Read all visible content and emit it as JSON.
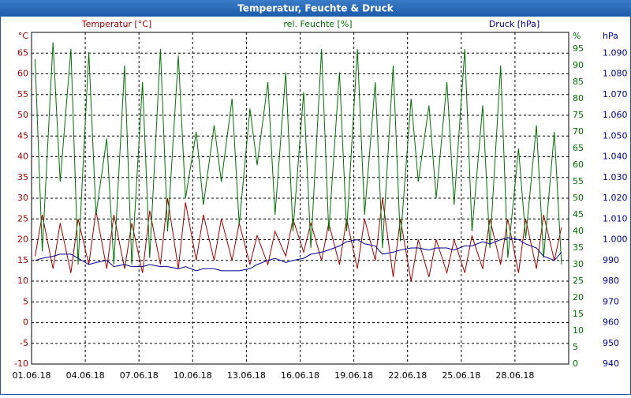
{
  "chart_data": {
    "type": "line",
    "title": "Temperatur, Feuchte & Druck",
    "ylabel": "Temperatur [°C]",
    "y2label": "rel. Feuchte [%]",
    "y3label": "Druck [hPa]",
    "yunit": "°C",
    "y2unit": "%",
    "y3unit": "hPa",
    "grid": true,
    "xlim": [
      0,
      30
    ],
    "xticks": [
      {
        "value": 0,
        "label": "01.06.18"
      },
      {
        "value": 3,
        "label": "04.06.18"
      },
      {
        "value": 6,
        "label": "07.06.18"
      },
      {
        "value": 9,
        "label": "10.06.18"
      },
      {
        "value": 12,
        "label": "13.06.18"
      },
      {
        "value": 15,
        "label": "16.06.18"
      },
      {
        "value": 18,
        "label": "19.06.18"
      },
      {
        "value": 21,
        "label": "22.06.18"
      },
      {
        "value": 24,
        "label": "25.06.18"
      },
      {
        "value": 27,
        "label": "28.06.18"
      }
    ],
    "ylim": [
      -10,
      70
    ],
    "yticks": [
      -10,
      -5,
      0,
      5,
      10,
      15,
      20,
      25,
      30,
      35,
      40,
      45,
      50,
      55,
      60,
      65
    ],
    "y2lim": [
      0,
      100
    ],
    "y2ticks": [
      0,
      5,
      10,
      15,
      20,
      25,
      30,
      35,
      40,
      45,
      50,
      55,
      60,
      65,
      70,
      75,
      80,
      85,
      90,
      95
    ],
    "y3lim": [
      940,
      1100
    ],
    "y3ticks": [
      940,
      950,
      960,
      970,
      980,
      990,
      {
        "value": 1000,
        "label": "1.000"
      },
      {
        "value": 1010,
        "label": "1.010"
      },
      {
        "value": 1020,
        "label": "1.020"
      },
      {
        "value": 1030,
        "label": "1.030"
      },
      {
        "value": 1040,
        "label": "1.040"
      },
      {
        "value": 1050,
        "label": "1.050"
      },
      {
        "value": 1060,
        "label": "1.060"
      },
      {
        "value": 1070,
        "label": "1.070"
      },
      {
        "value": 1080,
        "label": "1.080"
      },
      {
        "value": 1090,
        "label": "1.090"
      }
    ],
    "x": [
      0.2,
      0.6,
      1.2,
      1.6,
      2.2,
      2.6,
      3.2,
      3.6,
      4.2,
      4.6,
      5.2,
      5.6,
      6.2,
      6.6,
      7.2,
      7.6,
      8.2,
      8.6,
      9.2,
      9.6,
      10.2,
      10.6,
      11.2,
      11.6,
      12.2,
      12.6,
      13.2,
      13.6,
      14.2,
      14.6,
      15.2,
      15.6,
      16.2,
      16.6,
      17.2,
      17.6,
      18.2,
      18.6,
      19.2,
      19.6,
      20.2,
      20.6,
      21.2,
      21.6,
      22.2,
      22.6,
      23.2,
      23.6,
      24.2,
      24.6,
      25.2,
      25.6,
      26.2,
      26.6,
      27.2,
      27.6,
      28.2,
      28.6,
      29.2,
      29.6
    ],
    "series": [
      {
        "name": "Temperatur [°C]",
        "axis": "y",
        "color": "#a00000",
        "values": [
          16,
          26,
          13,
          24,
          12,
          25,
          14,
          27,
          13,
          26,
          13,
          24,
          12,
          27,
          14,
          30,
          13,
          29,
          15,
          26,
          15,
          25,
          15,
          24,
          14,
          21,
          14,
          22,
          16,
          25,
          17,
          24,
          15,
          24,
          14,
          25,
          13,
          25,
          15,
          30,
          11,
          25,
          10,
          20,
          11,
          20,
          12,
          20,
          12,
          21,
          13,
          25,
          14,
          25,
          12,
          25,
          13,
          26,
          15,
          23
        ]
      },
      {
        "name": "rel. Feuchte [%]",
        "axis": "y2",
        "color": "#007000",
        "values": [
          92,
          34,
          97,
          55,
          95,
          30,
          94,
          45,
          68,
          30,
          90,
          30,
          85,
          32,
          95,
          40,
          93,
          50,
          70,
          48,
          72,
          55,
          80,
          42,
          77,
          60,
          85,
          45,
          88,
          40,
          82,
          35,
          95,
          40,
          88,
          40,
          95,
          45,
          85,
          35,
          90,
          37,
          80,
          55,
          78,
          50,
          85,
          48,
          95,
          40,
          78,
          35,
          90,
          32,
          65,
          38,
          72,
          32,
          70,
          30
        ]
      },
      {
        "name": "Druck [hPa]",
        "axis": "y3",
        "color": "#000090",
        "values": [
          990,
          991,
          992,
          993,
          993,
          991,
          988,
          989,
          990,
          987,
          988,
          987,
          987,
          988,
          987,
          987,
          986,
          987,
          985,
          986,
          986,
          985,
          985,
          985,
          986,
          988,
          990,
          991,
          989,
          990,
          991,
          993,
          994,
          995,
          997,
          999,
          1000,
          998,
          997,
          993,
          994,
          995,
          996,
          996,
          995,
          996,
          996,
          995,
          997,
          997,
          999,
          998,
          1000,
          1001,
          1000,
          998,
          996,
          992,
          990,
          994
        ]
      }
    ]
  }
}
